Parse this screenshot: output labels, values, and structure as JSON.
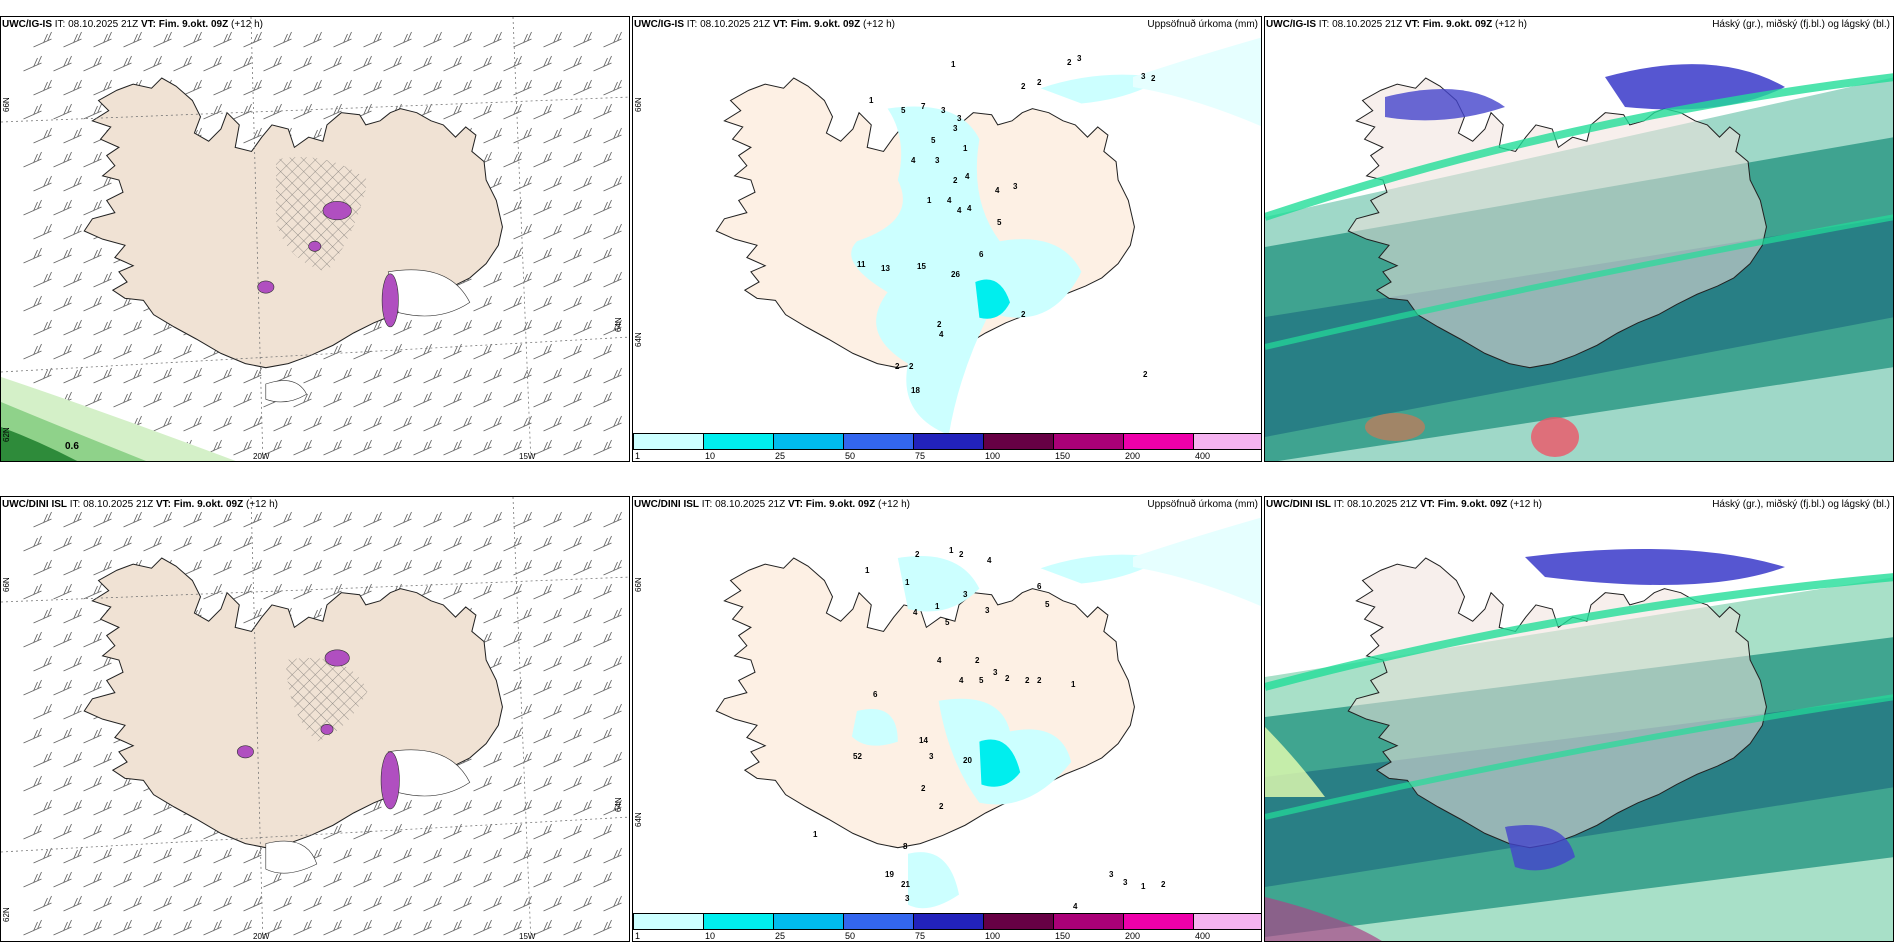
{
  "panels": [
    {
      "id": "wind-top",
      "title_model": "UWC/IG-IS",
      "title_it": "IT: 08.10.2025 21Z",
      "title_vt": "VT: Fim. 9.okt. 09Z",
      "title_lead": "(+12 h)",
      "lon_labels": [
        "20W",
        "15W"
      ],
      "lat_labels": [
        "66N",
        "64N",
        "62N"
      ],
      "value_label": "0.6",
      "colors": {
        "land": "#f0e2d4",
        "green_dark": "#2e8b3a",
        "green_light": "#bfe8b0",
        "purple": "#b04fc0"
      }
    },
    {
      "id": "precip-top",
      "title_model": "UWC/IG-IS",
      "title_it": "IT: 08.10.2025 21Z",
      "title_vt": "VT: Fim. 9.okt. 09Z",
      "title_lead": "(+12 h)",
      "right_label": "Uppsöfnuð úrkoma (mm)",
      "lat_labels": [
        "66N",
        "64N"
      ],
      "numbers": [
        "1",
        "1",
        "2",
        "3",
        "3",
        "2",
        "2",
        "2",
        "5",
        "7",
        "3",
        "3",
        "3",
        "1",
        "4",
        "5",
        "3",
        "4",
        "2",
        "3",
        "1",
        "4",
        "4",
        "4",
        "5",
        "4",
        "11",
        "13",
        "15",
        "26",
        "2",
        "4",
        "2",
        "2",
        "6",
        "2",
        "18",
        "2"
      ],
      "colorbar": [
        {
          "label": "1",
          "color": "#ccffff"
        },
        {
          "label": "10",
          "color": "#00eeee"
        },
        {
          "label": "25",
          "color": "#00bbee"
        },
        {
          "label": "50",
          "color": "#3366ee"
        },
        {
          "label": "75",
          "color": "#2222bb"
        },
        {
          "label": "100",
          "color": "#660044"
        },
        {
          "label": "150",
          "color": "#aa0077"
        },
        {
          "label": "200",
          "color": "#ee00aa"
        },
        {
          "label": "400",
          "color": "#f5b3f0"
        }
      ]
    },
    {
      "id": "cloud-top",
      "title_model": "UWC/IG-IS",
      "title_it": "IT: 08.10.2025 21Z",
      "title_vt": "VT: Fim. 9.okt. 09Z",
      "title_lead": "(+12 h)",
      "right_label": "Háský (gr.), miðský (fj.bl.) og lágský (bl.)"
    },
    {
      "id": "wind-bottom",
      "title_model": "UWC/DINI ISL",
      "title_it": "IT: 08.10.2025 21Z",
      "title_vt": "VT: Fim. 9.okt. 09Z",
      "title_lead": "(+12 h)",
      "lon_labels": [
        "20W",
        "15W"
      ],
      "lat_labels": [
        "66N",
        "64N",
        "62N"
      ],
      "colors": {
        "land": "#f0e2d4",
        "purple": "#b04fc0"
      }
    },
    {
      "id": "precip-bottom",
      "title_model": "UWC/DINI ISL",
      "title_it": "IT: 08.10.2025 21Z",
      "title_vt": "VT: Fim. 9.okt. 09Z",
      "title_lead": "(+12 h)",
      "right_label": "Uppsöfnuð úrkoma (mm)",
      "lat_labels": [
        "66N",
        "64N"
      ],
      "numbers": [
        "1",
        "2",
        "1",
        "2",
        "1",
        "4",
        "6",
        "5",
        "3",
        "3",
        "4",
        "1",
        "5",
        "2",
        "4",
        "4",
        "3",
        "5",
        "2",
        "2",
        "2",
        "1",
        "6",
        "52",
        "14",
        "3",
        "20",
        "2",
        "2",
        "1",
        "8",
        "19",
        "21",
        "3",
        "3",
        "3",
        "1",
        "2",
        "4"
      ],
      "colorbar": [
        {
          "label": "1",
          "color": "#ccffff"
        },
        {
          "label": "10",
          "color": "#00eeee"
        },
        {
          "label": "25",
          "color": "#00bbee"
        },
        {
          "label": "50",
          "color": "#3366ee"
        },
        {
          "label": "75",
          "color": "#2222bb"
        },
        {
          "label": "100",
          "color": "#660044"
        },
        {
          "label": "150",
          "color": "#aa0077"
        },
        {
          "label": "200",
          "color": "#ee00aa"
        },
        {
          "label": "400",
          "color": "#f5b3f0"
        }
      ]
    },
    {
      "id": "cloud-bottom",
      "title_model": "UWC/DINI ISL",
      "title_it": "IT: 08.10.2025 21Z",
      "title_vt": "VT: Fim. 9.okt. 09Z",
      "title_lead": "(+12 h)",
      "right_label": "Háský (gr.), miðský (fj.bl.) og lágský (bl.)"
    }
  ]
}
